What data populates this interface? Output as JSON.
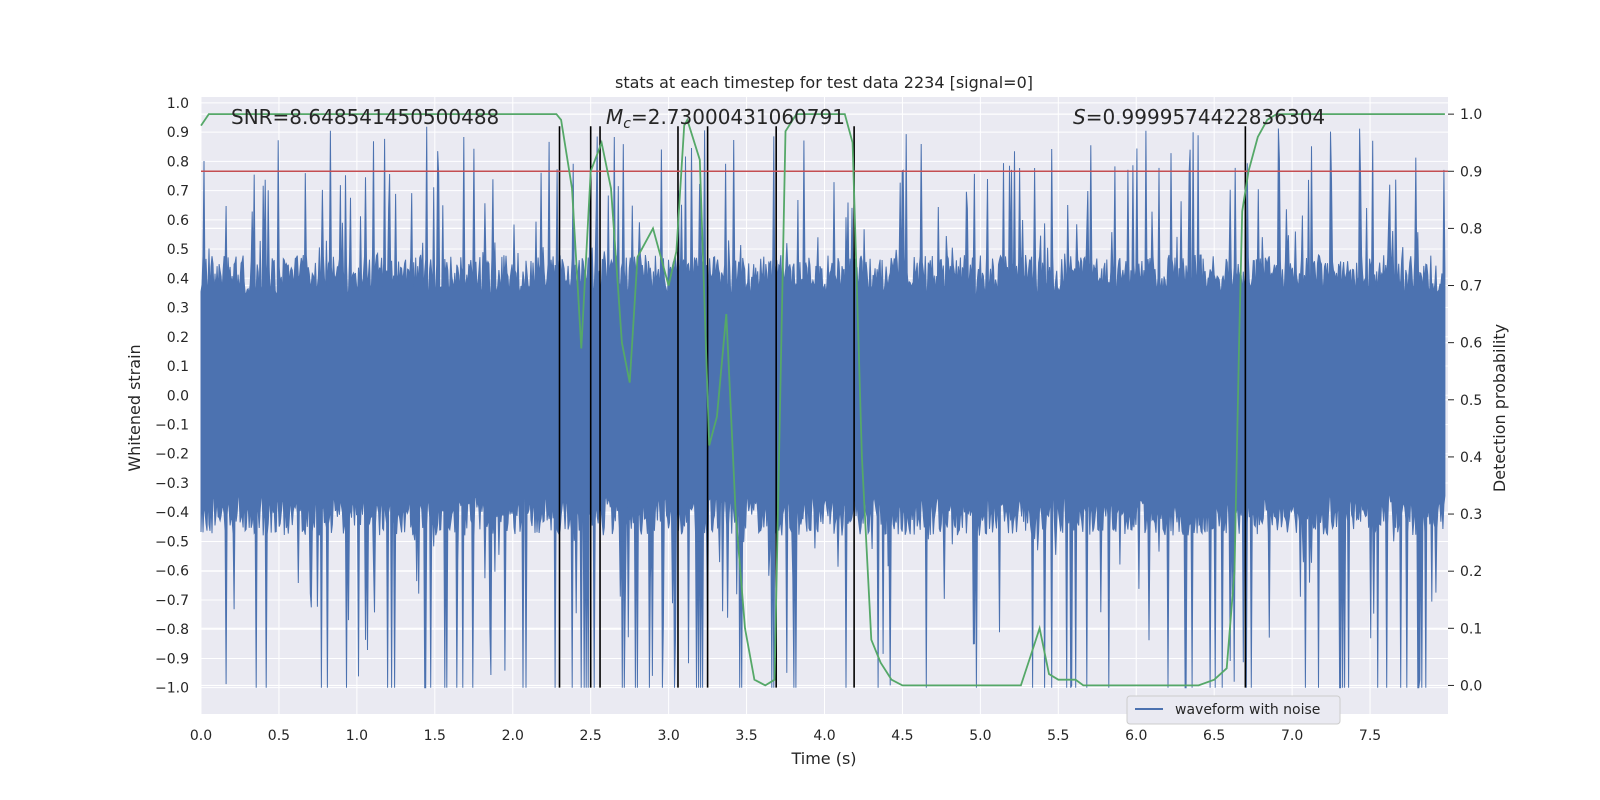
{
  "chart_data": {
    "type": "line",
    "title": "stats at each timestep for test data 2234 [signal=0]",
    "xlabel": "Time (s)",
    "ylabel_left": "Whitened strain",
    "ylabel_right": "Detection probability",
    "xlim": [
      0.0,
      8.0
    ],
    "ylim_left": [
      -1.09,
      1.02
    ],
    "ylim_right": [
      -0.05,
      1.03
    ],
    "x_ticks": [
      "0.0",
      "0.5",
      "1.0",
      "1.5",
      "2.0",
      "2.5",
      "3.0",
      "3.5",
      "4.0",
      "4.5",
      "5.0",
      "5.5",
      "6.0",
      "6.5",
      "7.0",
      "7.5"
    ],
    "y_left_ticks": [
      "1.0",
      "0.9",
      "0.8",
      "0.7",
      "0.6",
      "0.5",
      "0.4",
      "0.3",
      "0.2",
      "0.1",
      "0.0",
      "−0.1",
      "−0.2",
      "−0.3",
      "−0.4",
      "−0.5",
      "−0.6",
      "−0.7",
      "−0.8",
      "−0.9",
      "−1.0"
    ],
    "y_right_ticks": [
      "1.0",
      "0.9",
      "0.8",
      "0.7",
      "0.6",
      "0.5",
      "0.4",
      "0.3",
      "0.2",
      "0.1",
      "0.0"
    ],
    "annotations": {
      "snr": "SNR=8.648541450500488",
      "mc_symbol": "M",
      "mc_sub": "c",
      "mc_value": "=2.73000431060791",
      "s_symbol": "S",
      "s_value": "=0.9999574422836304"
    },
    "threshold": 0.9,
    "vertical_lines": [
      2.3,
      2.5,
      2.56,
      3.06,
      3.25,
      3.69,
      4.19,
      6.7
    ],
    "vertical_line_range": [
      -1.0,
      0.92
    ],
    "waveform": {
      "name": "waveform with noise",
      "envelope": 0.4,
      "min": -1.0,
      "max": 0.92,
      "seed": 2234
    },
    "probability": {
      "x": [
        0.0,
        0.05,
        0.1,
        0.2,
        0.5,
        1.0,
        1.5,
        2.0,
        2.2,
        2.28,
        2.31,
        2.38,
        2.44,
        2.5,
        2.57,
        2.63,
        2.7,
        2.75,
        2.8,
        2.9,
        3.0,
        3.05,
        3.1,
        3.12,
        3.2,
        3.26,
        3.31,
        3.37,
        3.43,
        3.49,
        3.55,
        3.62,
        3.68,
        3.75,
        3.82,
        3.87,
        4.0,
        4.13,
        4.18,
        4.24,
        4.3,
        4.36,
        4.43,
        4.5,
        4.7,
        5.0,
        5.2,
        5.26,
        5.32,
        5.38,
        5.44,
        5.5,
        5.55,
        5.61,
        5.66,
        5.72,
        5.8,
        5.9,
        6.0,
        6.2,
        6.4,
        6.5,
        6.58,
        6.63,
        6.66,
        6.68,
        6.72,
        6.78,
        6.84,
        6.9,
        7.0,
        7.5,
        7.98
      ],
      "values": [
        0.98,
        1.0,
        1.0,
        1.0,
        1.0,
        1.0,
        1.0,
        1.0,
        1.0,
        1.0,
        0.99,
        0.87,
        0.59,
        0.9,
        0.95,
        0.87,
        0.6,
        0.53,
        0.75,
        0.8,
        0.7,
        0.76,
        0.98,
        0.99,
        0.92,
        0.42,
        0.47,
        0.65,
        0.3,
        0.1,
        0.01,
        0.0,
        0.01,
        0.97,
        1.0,
        1.0,
        1.0,
        1.0,
        0.95,
        0.4,
        0.08,
        0.04,
        0.01,
        0.0,
        0.0,
        0.0,
        0.0,
        0.0,
        0.05,
        0.1,
        0.02,
        0.01,
        0.01,
        0.01,
        0.0,
        0.0,
        0.0,
        0.0,
        0.0,
        0.0,
        0.0,
        0.01,
        0.03,
        0.2,
        0.6,
        0.83,
        0.9,
        0.96,
        0.99,
        1.0,
        1.0,
        1.0,
        1.0
      ]
    },
    "legend": [
      "waveform with noise"
    ],
    "legend_position": "lower-right",
    "grid": true
  },
  "colors": {
    "axes_bg": "#eaeaf2",
    "grid": "#ffffff",
    "waveform": "#4c72b0",
    "probability": "#55a868",
    "threshold": "#c44e52",
    "vline": "#000000",
    "text": "#262626"
  }
}
